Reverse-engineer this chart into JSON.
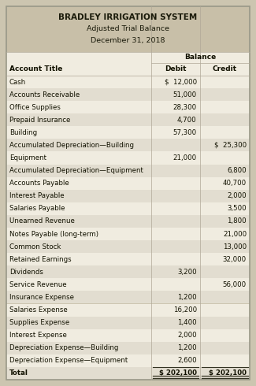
{
  "title_line1": "BRADLEY IRRIGATION SYSTEM",
  "title_line2": "Adjusted Trial Balance",
  "title_line3": "December 31, 2018",
  "header_bg": "#c8bfa8",
  "row_bg_light": "#f0ece0",
  "row_bg_dark": "#e2ddd0",
  "outer_bg": "#ccc5b0",
  "col_headers": [
    "Account Title",
    "Debit",
    "Credit"
  ],
  "balance_label": "Balance",
  "rows": [
    {
      "account": "Cash",
      "debit": "$  12,000",
      "credit": ""
    },
    {
      "account": "Accounts Receivable",
      "debit": "51,000",
      "credit": ""
    },
    {
      "account": "Office Supplies",
      "debit": "28,300",
      "credit": ""
    },
    {
      "account": "Prepaid Insurance",
      "debit": "4,700",
      "credit": ""
    },
    {
      "account": "Building",
      "debit": "57,300",
      "credit": ""
    },
    {
      "account": "Accumulated Depreciation—Building",
      "debit": "",
      "credit": "$  25,300"
    },
    {
      "account": "Equipment",
      "debit": "21,000",
      "credit": ""
    },
    {
      "account": "Accumulated Depreciation—Equipment",
      "debit": "",
      "credit": "6,800"
    },
    {
      "account": "Accounts Payable",
      "debit": "",
      "credit": "40,700"
    },
    {
      "account": "Interest Payable",
      "debit": "",
      "credit": "2,000"
    },
    {
      "account": "Salaries Payable",
      "debit": "",
      "credit": "3,500"
    },
    {
      "account": "Unearned Revenue",
      "debit": "",
      "credit": "1,800"
    },
    {
      "account": "Notes Payable (long-term)",
      "debit": "",
      "credit": "21,000"
    },
    {
      "account": "Common Stock",
      "debit": "",
      "credit": "13,000"
    },
    {
      "account": "Retained Earnings",
      "debit": "",
      "credit": "32,000"
    },
    {
      "account": "Dividends",
      "debit": "3,200",
      "credit": ""
    },
    {
      "account": "Service Revenue",
      "debit": "",
      "credit": "56,000"
    },
    {
      "account": "Insurance Expense",
      "debit": "1,200",
      "credit": ""
    },
    {
      "account": "Salaries Expense",
      "debit": "16,200",
      "credit": ""
    },
    {
      "account": "Supplies Expense",
      "debit": "1,400",
      "credit": ""
    },
    {
      "account": "Interest Expense",
      "debit": "2,000",
      "credit": ""
    },
    {
      "account": "Depreciation Expense—Building",
      "debit": "1,200",
      "credit": ""
    },
    {
      "account": "Depreciation Expense—Equipment",
      "debit": "2,600",
      "credit": ""
    },
    {
      "account": "Total",
      "debit": "$ 202,100",
      "credit": "$ 202,100"
    }
  ]
}
